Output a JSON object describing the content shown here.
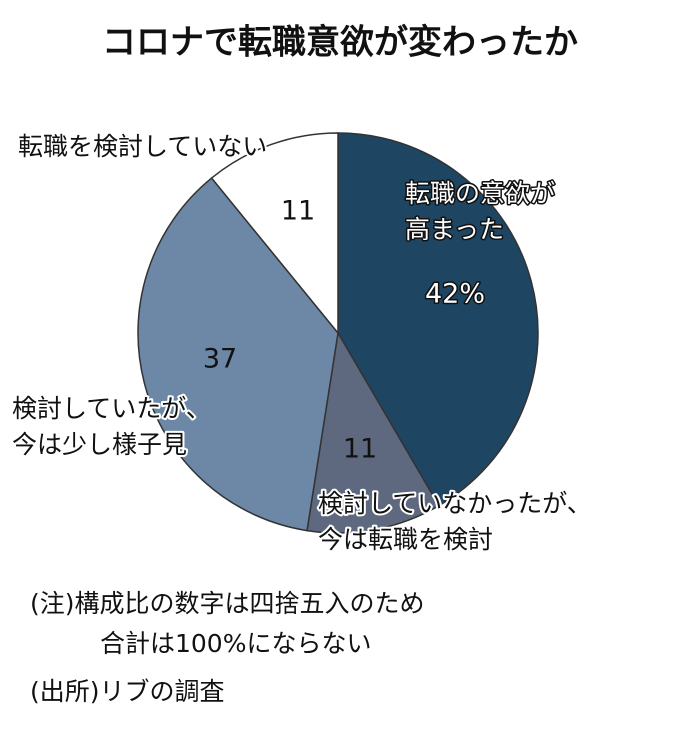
{
  "chart_data": {
    "type": "pie",
    "title": "コロナで転職意欲が変わったか",
    "categories": [
      [
        "転職の意欲が",
        "高まった"
      ],
      [
        "検討していなかったが、",
        "今は転職を検討"
      ],
      [
        "検討していたが、",
        "今は少し様子見"
      ],
      [
        "転職を検討していない"
      ]
    ],
    "values": [
      42,
      11,
      37,
      11
    ],
    "value_labels": [
      "42%",
      "11",
      "37",
      "11"
    ],
    "colors": [
      "#1e4562",
      "#5e6980",
      "#6d87a6",
      "#ffffff"
    ],
    "notes": [
      "(注)構成比の数字は四捨五入のため",
      "合計は100%にならない"
    ],
    "source": "(出所)リブの調査"
  }
}
